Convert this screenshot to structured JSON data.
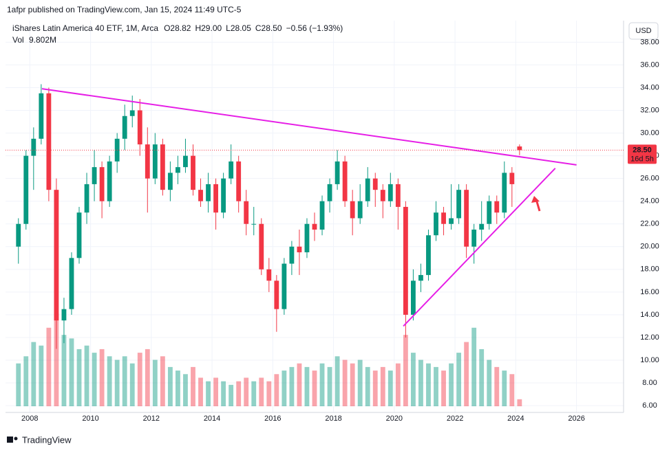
{
  "chart_data": {
    "type": "candlestick",
    "publisher": "1afpr published on TradingView.com, Jan 15, 2024 11:49 UTC-5",
    "symbol": "iShares Latin America 40 ETF, 1M, Arca",
    "ohlc_labels": [
      "O28.82",
      "H29.00",
      "L28.05",
      "C28.50"
    ],
    "change_label": "−0.56 (−1.93%)",
    "volume_name": "Vol",
    "volume_label": "9.802M",
    "currency": "USD",
    "brand": "TradingView",
    "up_color": "#089981",
    "down_color": "#f23645",
    "grid": true,
    "x": [
      2007.5,
      2007.75,
      2008.0,
      2008.25,
      2008.5,
      2008.75,
      2009.0,
      2009.25,
      2009.5,
      2009.75,
      2010.0,
      2010.25,
      2010.5,
      2010.75,
      2011.0,
      2011.25,
      2011.5,
      2011.75,
      2012.0,
      2012.25,
      2012.5,
      2012.75,
      2013.0,
      2013.25,
      2013.5,
      2013.75,
      2014.0,
      2014.25,
      2014.5,
      2014.75,
      2015.0,
      2015.25,
      2015.5,
      2015.75,
      2016.0,
      2016.25,
      2016.5,
      2016.75,
      2017.0,
      2017.25,
      2017.5,
      2017.75,
      2018.0,
      2018.25,
      2018.5,
      2018.75,
      2019.0,
      2019.25,
      2019.5,
      2019.75,
      2020.0,
      2020.25,
      2020.5,
      2020.75,
      2021.0,
      2021.25,
      2021.5,
      2021.75,
      2022.0,
      2022.25,
      2022.5,
      2022.75,
      2023.0,
      2023.25,
      2023.5,
      2023.75,
      2024.0
    ],
    "open": [
      20.0,
      22.0,
      28.0,
      29.5,
      33.5,
      25.0,
      13.5,
      14.5,
      19.0,
      23.0,
      25.5,
      27.0,
      24.0,
      27.5,
      29.5,
      31.5,
      32.0,
      29.0,
      26.0,
      29.0,
      25.0,
      26.5,
      27.0,
      28.0,
      25.0,
      24.0,
      25.5,
      23.0,
      26.0,
      27.5,
      24.0,
      22.0,
      22.0,
      18.0,
      17.0,
      14.5,
      18.5,
      20.0,
      19.5,
      22.0,
      21.5,
      24.0,
      25.5,
      27.5,
      24.0,
      22.5,
      24.0,
      26.0,
      25.0,
      24.0,
      25.5,
      23.5,
      14.0,
      17.0,
      17.5,
      21.0,
      23.0,
      22.0,
      22.5,
      25.0,
      20.0,
      21.5,
      22.0,
      24.0,
      23.0,
      26.5,
      28.82
    ],
    "high": [
      22.5,
      28.5,
      30.5,
      34.3,
      34.0,
      26.0,
      15.5,
      19.5,
      23.5,
      26.5,
      28.5,
      27.5,
      28.0,
      30.0,
      32.5,
      33.3,
      33.0,
      30.5,
      30.0,
      29.5,
      27.5,
      28.0,
      29.5,
      29.0,
      26.0,
      26.5,
      26.0,
      26.5,
      29.0,
      28.0,
      25.0,
      23.5,
      22.5,
      19.0,
      17.5,
      19.0,
      20.5,
      21.5,
      22.5,
      23.0,
      24.5,
      26.0,
      28.5,
      28.0,
      25.0,
      25.5,
      27.0,
      26.5,
      25.5,
      26.5,
      26.0,
      24.0,
      18.0,
      18.5,
      21.5,
      24.0,
      23.5,
      25.5,
      25.5,
      25.5,
      22.0,
      24.0,
      24.5,
      24.5,
      27.5,
      27.0,
      29.0
    ],
    "low": [
      18.5,
      21.5,
      25.0,
      29.0,
      24.0,
      11.0,
      11.5,
      14.0,
      18.5,
      22.0,
      24.0,
      22.5,
      23.5,
      26.5,
      28.5,
      30.5,
      28.0,
      23.0,
      25.5,
      24.5,
      24.0,
      25.5,
      26.5,
      24.5,
      23.5,
      23.0,
      21.5,
      22.5,
      25.5,
      23.0,
      21.0,
      21.0,
      17.5,
      16.0,
      12.5,
      14.0,
      17.5,
      17.5,
      19.0,
      20.5,
      21.0,
      23.0,
      25.0,
      23.5,
      21.0,
      22.0,
      23.5,
      23.5,
      22.5,
      23.5,
      21.5,
      12.0,
      13.5,
      16.0,
      17.0,
      20.5,
      21.0,
      21.5,
      22.0,
      19.0,
      18.5,
      20.5,
      21.5,
      22.0,
      22.5,
      23.5,
      28.05
    ],
    "close": [
      22.0,
      28.0,
      29.5,
      33.5,
      25.0,
      13.5,
      14.5,
      19.0,
      23.0,
      25.5,
      27.0,
      24.0,
      27.5,
      29.5,
      31.5,
      32.0,
      29.0,
      26.0,
      29.0,
      25.0,
      26.5,
      27.0,
      28.0,
      25.0,
      24.0,
      25.5,
      23.0,
      26.0,
      27.5,
      24.0,
      22.0,
      22.0,
      18.0,
      17.0,
      14.5,
      18.5,
      20.0,
      19.5,
      22.0,
      21.5,
      24.0,
      25.5,
      27.5,
      24.0,
      22.5,
      24.0,
      26.0,
      25.0,
      24.0,
      25.5,
      23.5,
      14.0,
      17.0,
      17.5,
      21.0,
      23.0,
      22.0,
      22.5,
      25.0,
      20.0,
      21.5,
      22.0,
      24.0,
      23.0,
      26.5,
      25.5,
      28.5
    ],
    "volume": [
      60,
      70,
      90,
      85,
      110,
      130,
      100,
      95,
      80,
      85,
      75,
      80,
      70,
      65,
      70,
      60,
      75,
      80,
      65,
      70,
      55,
      50,
      45,
      55,
      40,
      35,
      40,
      35,
      30,
      35,
      40,
      35,
      40,
      35,
      45,
      50,
      55,
      60,
      55,
      50,
      60,
      55,
      70,
      65,
      60,
      65,
      55,
      50,
      55,
      50,
      60,
      100,
      75,
      65,
      60,
      55,
      50,
      60,
      75,
      90,
      110,
      80,
      65,
      55,
      50,
      45,
      9.802
    ],
    "ylim": [
      5.4,
      39.9
    ],
    "yticks": [
      {
        "value": 6,
        "label": "6.00"
      },
      {
        "value": 8,
        "label": "8.00"
      },
      {
        "value": 10,
        "label": "10.00"
      },
      {
        "value": 12,
        "label": "12.00"
      },
      {
        "value": 14,
        "label": "14.00"
      },
      {
        "value": 16,
        "label": "16.00"
      },
      {
        "value": 18,
        "label": "18.00"
      },
      {
        "value": 20,
        "label": "20.00"
      },
      {
        "value": 22,
        "label": "22.00"
      },
      {
        "value": 24,
        "label": "24.00"
      },
      {
        "value": 26,
        "label": "26.00"
      },
      {
        "value": 28,
        "label": "28.00"
      },
      {
        "value": 30,
        "label": "30.00"
      },
      {
        "value": 32,
        "label": "32.00"
      },
      {
        "value": 34,
        "label": "34.00"
      },
      {
        "value": 36,
        "label": "36.00"
      },
      {
        "value": 38,
        "label": "38.00"
      }
    ],
    "xlim": [
      2007.2,
      2027.55
    ],
    "xticks": [
      2008,
      2010,
      2012,
      2014,
      2016,
      2018,
      2020,
      2022,
      2024,
      2026
    ],
    "last_price": {
      "value": 28.5,
      "label": "28.50"
    },
    "countdown": "16d 5h",
    "trendlines": [
      {
        "x": [
          2008.4,
          2026.0
        ],
        "y": [
          33.9,
          27.2
        ],
        "color": "#e61ee6"
      },
      {
        "x": [
          2020.3,
          2025.3
        ],
        "y": [
          13.0,
          26.9
        ],
        "color": "#e61ee6"
      }
    ]
  }
}
